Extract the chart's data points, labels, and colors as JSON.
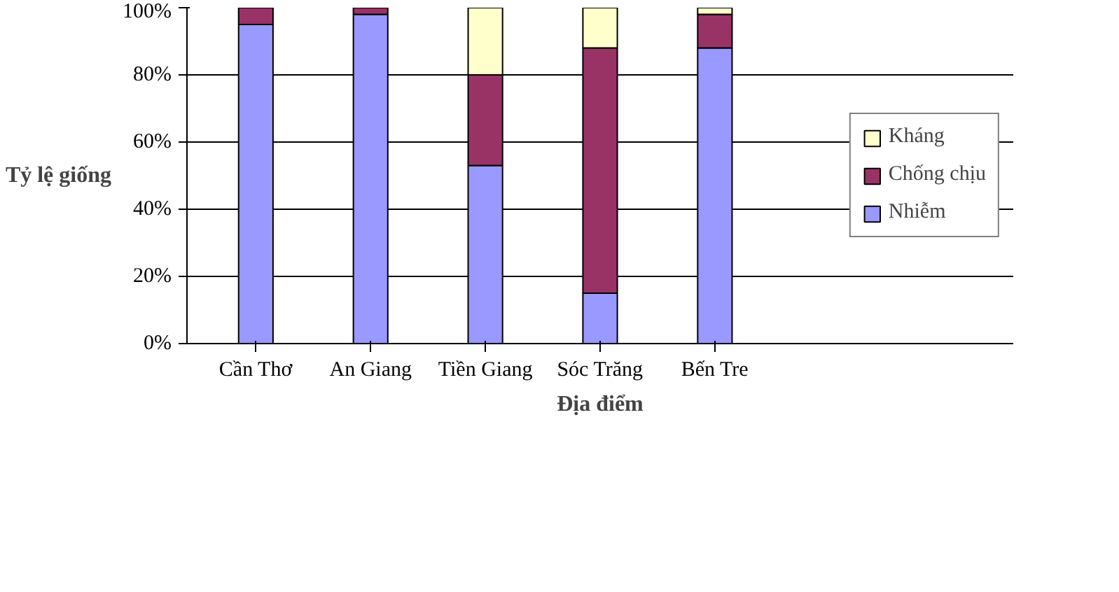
{
  "chart_data": {
    "type": "bar",
    "stacked": true,
    "xlabel": "Địa điểm",
    "ylabel": "Tỷ lệ giống",
    "categories": [
      "Cần Thơ",
      "An Giang",
      "Tiền Giang",
      "Sóc Trăng",
      "Bến Tre"
    ],
    "series": [
      {
        "name": "Nhiễm",
        "color": "#9999ff",
        "values": [
          95,
          98,
          53,
          15,
          88
        ]
      },
      {
        "name": "Chống chịu",
        "color": "#993366",
        "values": [
          5,
          2,
          27,
          73,
          10
        ]
      },
      {
        "name": "Kháng",
        "color": "#ffffcc",
        "values": [
          null,
          null,
          20,
          12,
          2
        ]
      }
    ],
    "ylim": [
      0,
      100
    ],
    "yticks": [
      {
        "value": 0,
        "label": "0%"
      },
      {
        "value": 20,
        "label": "20%"
      },
      {
        "value": 40,
        "label": "40%"
      },
      {
        "value": 60,
        "label": "60%"
      },
      {
        "value": 80,
        "label": "80%"
      },
      {
        "value": 100,
        "label": "100%"
      }
    ],
    "grid": "y",
    "legend": "right"
  }
}
